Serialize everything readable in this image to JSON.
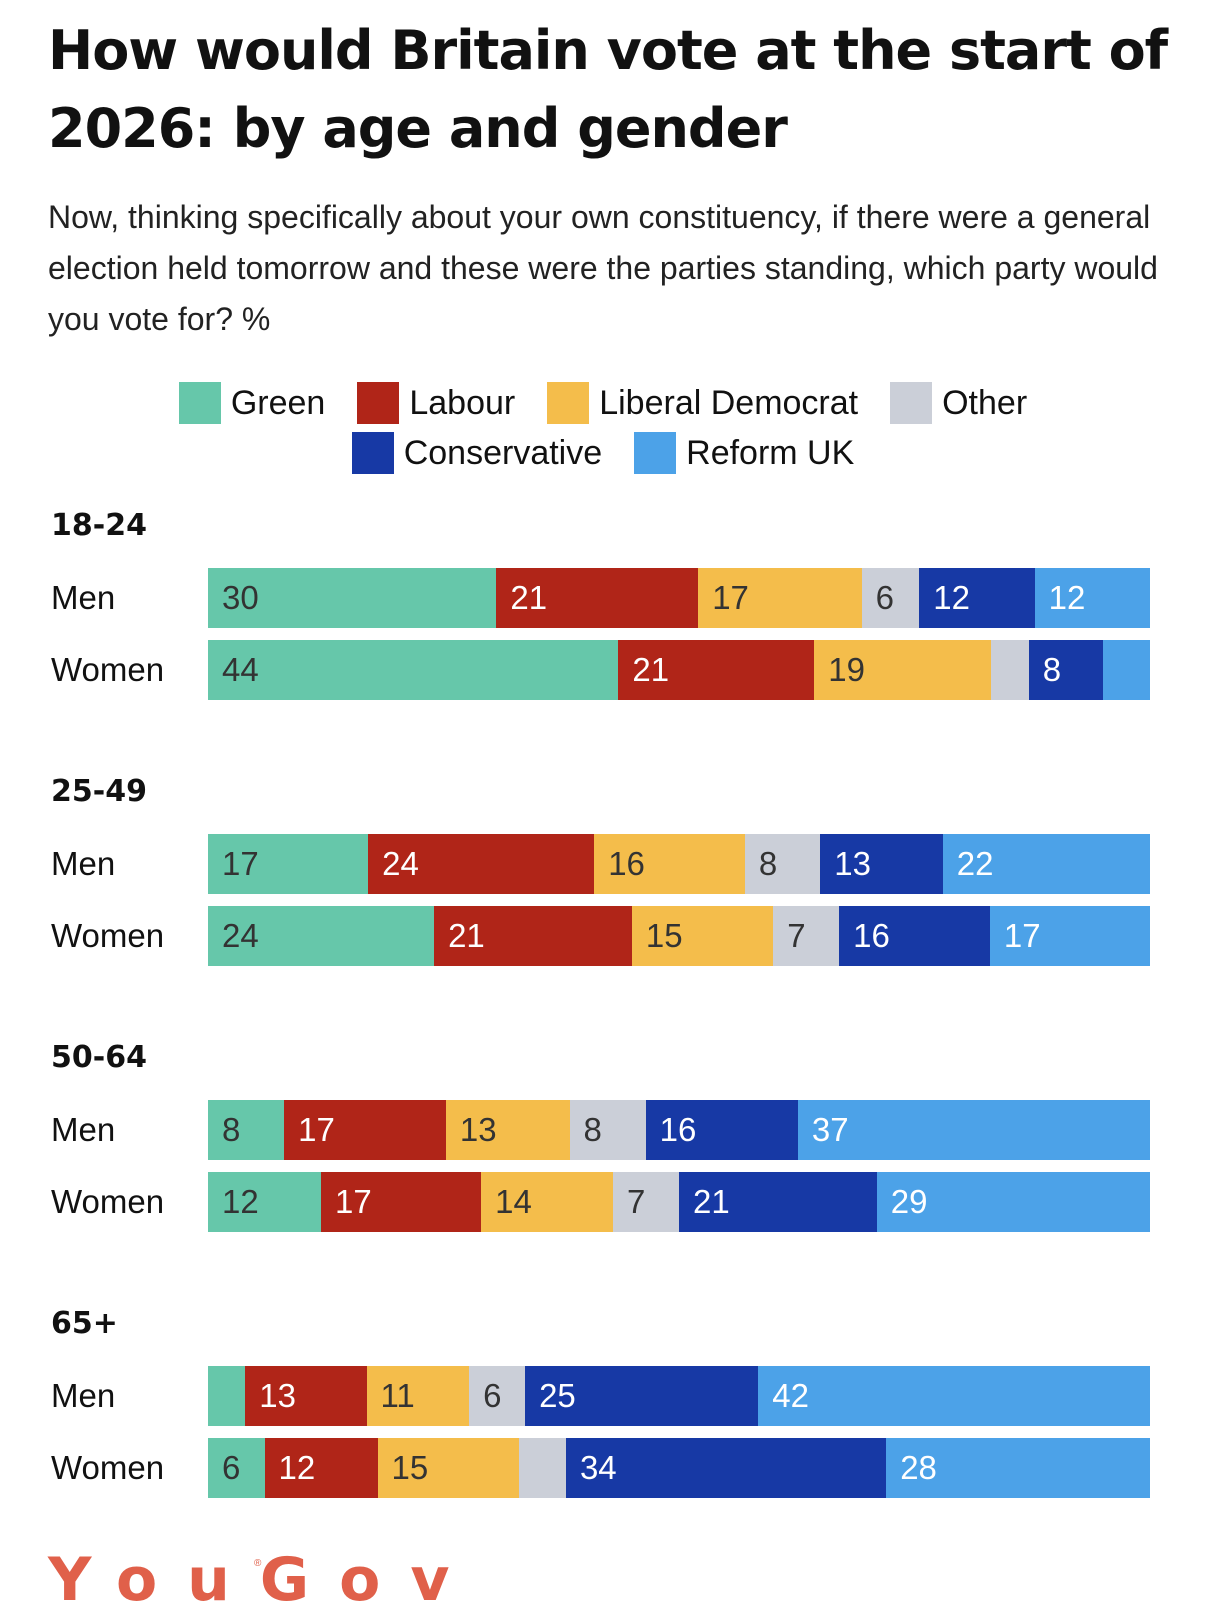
{
  "chart_data": {
    "type": "bar",
    "orientation": "horizontal-stacked",
    "title": "How would Britain vote at the start of 2026: by age and gender",
    "subtitle": "Now, thinking specifically about your own constituency, if there were a general election held tomorrow and these were the parties standing, which party would you vote for? %",
    "legend_placement": "top-center",
    "parties": [
      {
        "name": "Green",
        "color": "#66c7aa",
        "text_color": "#333333"
      },
      {
        "name": "Labour",
        "color": "#b02518",
        "text_color": "#ffffff"
      },
      {
        "name": "Liberal Democrat",
        "color": "#f4bd4b",
        "text_color": "#333333"
      },
      {
        "name": "Other",
        "color": "#cbcfd8",
        "text_color": "#333333"
      },
      {
        "name": "Conservative",
        "color": "#1739a5",
        "text_color": "#ffffff"
      },
      {
        "name": "Reform UK",
        "color": "#4ca2e8",
        "text_color": "#ffffff"
      }
    ],
    "groups": [
      {
        "age": "18-24",
        "rows": [
          {
            "label": "Men",
            "values": [
              30,
              21,
              17,
              6,
              12,
              12
            ],
            "shown_labels": [
              "30",
              "21",
              "17",
              "6",
              "12",
              "12"
            ]
          },
          {
            "label": "Women",
            "values": [
              44,
              21,
              19,
              4,
              8,
              5
            ],
            "shown_labels": [
              "44",
              "21",
              "19",
              "",
              "8",
              ""
            ]
          }
        ]
      },
      {
        "age": "25-49",
        "rows": [
          {
            "label": "Men",
            "values": [
              17,
              24,
              16,
              8,
              13,
              22
            ],
            "shown_labels": [
              "17",
              "24",
              "16",
              "8",
              "13",
              "22"
            ]
          },
          {
            "label": "Women",
            "values": [
              24,
              21,
              15,
              7,
              16,
              17
            ],
            "shown_labels": [
              "24",
              "21",
              "15",
              "7",
              "16",
              "17"
            ]
          }
        ]
      },
      {
        "age": "50-64",
        "rows": [
          {
            "label": "Men",
            "values": [
              8,
              17,
              13,
              8,
              16,
              37
            ],
            "shown_labels": [
              "8",
              "17",
              "13",
              "8",
              "16",
              "37"
            ]
          },
          {
            "label": "Women",
            "values": [
              12,
              17,
              14,
              7,
              21,
              29
            ],
            "shown_labels": [
              "12",
              "17",
              "14",
              "7",
              "21",
              "29"
            ]
          }
        ]
      },
      {
        "age": "65+",
        "rows": [
          {
            "label": "Men",
            "values": [
              4,
              13,
              11,
              6,
              25,
              42
            ],
            "shown_labels": [
              "",
              "13",
              "11",
              "6",
              "25",
              "42"
            ]
          },
          {
            "label": "Women",
            "values": [
              6,
              12,
              15,
              5,
              34,
              28
            ],
            "shown_labels": [
              "6",
              "12",
              "15",
              "",
              "34",
              "28"
            ]
          }
        ]
      }
    ],
    "xlabel": "",
    "ylabel": "",
    "unit": "%"
  },
  "footer": {
    "logo_text": "YouGov",
    "registered_mark": "®"
  }
}
